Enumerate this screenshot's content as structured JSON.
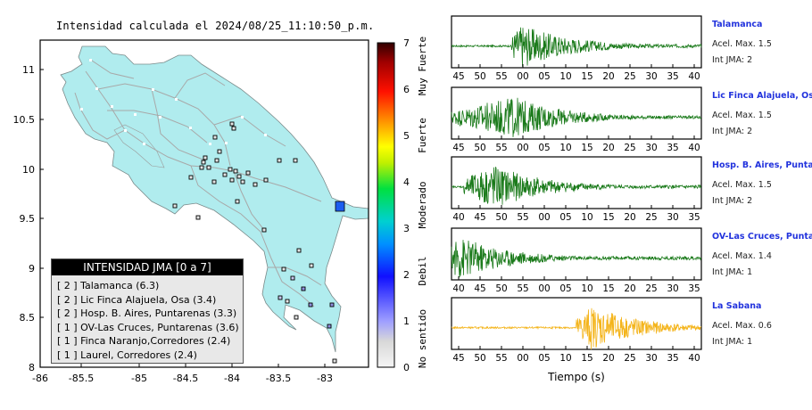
{
  "title": "Intensidad calculada el 2024/08/25_11:10:50_p.m.",
  "map": {
    "x_ticks": [
      "-86",
      "-85.5",
      "-85",
      "-84.5",
      "-84",
      "-83.5",
      "-83"
    ],
    "y_ticks": [
      "11",
      "10.5",
      "10",
      "9.5",
      "9",
      "8.5",
      "8"
    ],
    "land_color": "#b0ecee"
  },
  "colorbar": {
    "ticks": [
      "7",
      "6",
      "5",
      "4",
      "3",
      "2",
      "1",
      "0"
    ],
    "labels": [
      "Muy Fuerte",
      "Fuerte",
      "Moderado",
      "Debil",
      "No sentido"
    ]
  },
  "legend": {
    "title": "INTENSIDAD JMA [0 a 7]",
    "items": [
      "[ 2 ]  Talamanca (6.3)",
      "[ 2 ]  Lic Finca Alajuela, Osa (3.4)",
      "[ 2 ]  Hosp. B. Aires, Puntarenas (3.3)",
      "[ 1 ]  OV-Las Cruces, Puntarenas (3.6)",
      "[ 1 ]  Finca Naranjo,Corredores (2.4)",
      "[ 1 ]  Laurel, Corredores (2.4)"
    ]
  },
  "chart_data": [
    {
      "type": "scatter",
      "title": "Intensidad calculada el 2024/08/25_11:10:50_p.m.",
      "xlim": [
        -86,
        -82.6
      ],
      "ylim": [
        8,
        11.3
      ],
      "stations": [
        {
          "lon": -82.85,
          "lat": 9.62,
          "intensity": 2,
          "color": "#1b5ef0"
        }
      ]
    },
    {
      "type": "line",
      "xlabel": "Tiempo (s)",
      "series": [
        {
          "name": "Talamanca",
          "accel": "Acel. Max. 1.5",
          "int": "Int JMA: 2",
          "ticks": [
            "45",
            "50",
            "55",
            "00",
            "05",
            "10",
            "15",
            "20",
            "25",
            "30",
            "35",
            "40"
          ],
          "color": "#1a7a1a",
          "onset": 0.24,
          "peak": 0.28,
          "env": 0.95
        },
        {
          "name": "Lic Finca Alajuela, Osa",
          "accel": "Acel. Max. 1.5",
          "int": "Int JMA: 2",
          "ticks": [
            "45",
            "50",
            "55",
            "00",
            "05",
            "10",
            "15",
            "20",
            "25",
            "30",
            "35",
            "40"
          ],
          "color": "#1a7a1a",
          "onset": 0.0,
          "peak": 0.25,
          "env": 0.9
        },
        {
          "name": "Hosp. B. Aires, Puntarenas",
          "accel": "Acel. Max. 1.5",
          "int": "Int JMA: 2",
          "ticks": [
            "40",
            "45",
            "50",
            "55",
            "00",
            "05",
            "10",
            "15",
            "20",
            "25",
            "30",
            "35"
          ],
          "color": "#1a7a1a",
          "onset": 0.05,
          "peak": 0.17,
          "env": 0.95
        },
        {
          "name": "OV-Las Cruces, Puntarenas",
          "accel": "Acel. Max. 1.4",
          "int": "Int JMA: 1",
          "ticks": [
            "40",
            "45",
            "50",
            "55",
            "00",
            "05",
            "10",
            "15",
            "20",
            "25",
            "30",
            "35"
          ],
          "color": "#1a7a1a",
          "onset": 0.0,
          "peak": 0.03,
          "env": 0.95
        },
        {
          "name": "La Sabana",
          "accel": "Acel. Max. 0.6",
          "int": "Int JMA: 1",
          "ticks": [
            "45",
            "50",
            "55",
            "00",
            "05",
            "10",
            "15",
            "20",
            "25",
            "30",
            "35",
            "40"
          ],
          "color": "#f4b41a",
          "onset": 0.5,
          "peak": 0.56,
          "env": 0.95
        }
      ]
    }
  ]
}
